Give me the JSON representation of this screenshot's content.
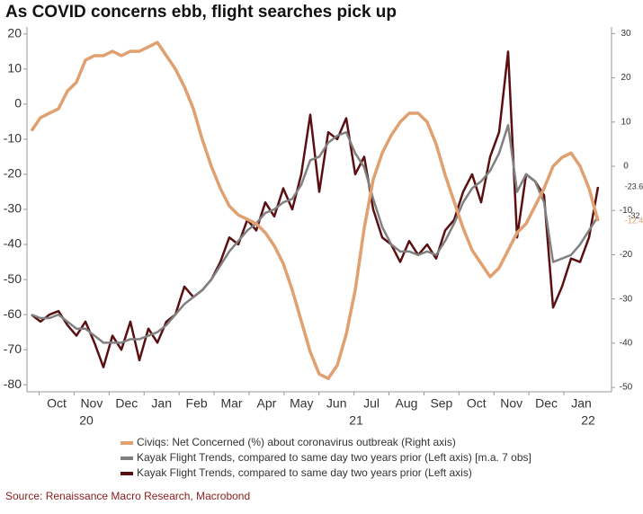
{
  "chart_data": {
    "type": "line",
    "title": "As COVID concerns ebb, flight searches pick up",
    "source": "Source: Renaissance Macro Research, Macrobond",
    "x_labels": [
      "Oct",
      "Nov",
      "Dec",
      "Jan",
      "Feb",
      "Mar",
      "Apr",
      "May",
      "Jun",
      "Jul",
      "Aug",
      "Sep",
      "Oct",
      "Nov",
      "Dec",
      "Jan"
    ],
    "x_year_labels": [
      "20",
      "21",
      "22"
    ],
    "ylim": [
      -82,
      22
    ],
    "yticks": [
      20,
      10,
      0,
      -10,
      -20,
      -30,
      -40,
      -50,
      -60,
      -70,
      -80
    ],
    "y2lim": [
      -51,
      31.5
    ],
    "y2ticks": [
      30,
      20,
      10,
      0,
      -10,
      -20,
      -30,
      -40,
      -50
    ],
    "series": [
      {
        "name": "Civiqs: Net Concerned (%) about coronavirus outbreak (Right axis)",
        "color": "#e0a070",
        "axis": "y2",
        "values": [
          8,
          11,
          12,
          13,
          17,
          19,
          24,
          25,
          25,
          26,
          25,
          26,
          26,
          27,
          28,
          25,
          22,
          18,
          13,
          6,
          0,
          -5,
          -9,
          -11,
          -12,
          -13,
          -15,
          -18,
          -22,
          -28,
          -35,
          -42,
          -47,
          -48,
          -45,
          -38,
          -28,
          -14,
          -3,
          3,
          7,
          10,
          12,
          12,
          10,
          5,
          -2,
          -8,
          -14,
          -19,
          -22,
          -25,
          -23,
          -19,
          -15,
          -13,
          -9,
          -5,
          0,
          2,
          3,
          0,
          -5,
          -12.4
        ]
      },
      {
        "name": "Kayak Flight Trends, compared to same day two years prior (Left axis) [m.a. 7 obs]",
        "color": "#808080",
        "values": [
          -60,
          -61,
          -61,
          -60,
          -62,
          -64,
          -64,
          -66,
          -68,
          -68,
          -68,
          -67,
          -67,
          -66,
          -65,
          -63,
          -60,
          -57,
          -55,
          -53,
          -50,
          -46,
          -42,
          -39,
          -36,
          -34,
          -31,
          -30,
          -28,
          -27,
          -23,
          -16,
          -15,
          -11,
          -9,
          -8,
          -14,
          -18,
          -27,
          -35,
          -40,
          -42,
          -42,
          -43,
          -42,
          -43,
          -39,
          -34,
          -28,
          -24,
          -22,
          -19,
          -14,
          -6,
          -25,
          -20,
          -22,
          -28,
          -45,
          -44,
          -43,
          -40,
          -36,
          -32
        ]
      },
      {
        "name": "Kayak Flight Trends, compared to same day two years prior (Left axis)",
        "color": "#5a1010",
        "values": [
          -60,
          -62,
          -60,
          -59,
          -63,
          -66,
          -62,
          -68,
          -75,
          -66,
          -70,
          -62,
          -73,
          -64,
          -68,
          -62,
          -60,
          -52,
          -55,
          -53,
          -50,
          -45,
          -38,
          -40,
          -33,
          -36,
          -28,
          -32,
          -24,
          -30,
          -20,
          -3,
          -25,
          -8,
          -10,
          -4,
          -20,
          -15,
          -30,
          -38,
          -40,
          -45,
          -39,
          -43,
          -40,
          -44,
          -36,
          -33,
          -25,
          -20,
          -28,
          -15,
          -8,
          15,
          -38,
          -20,
          -22,
          -26,
          -58,
          -52,
          -44,
          -45,
          -38,
          -23.6
        ]
      }
    ]
  }
}
